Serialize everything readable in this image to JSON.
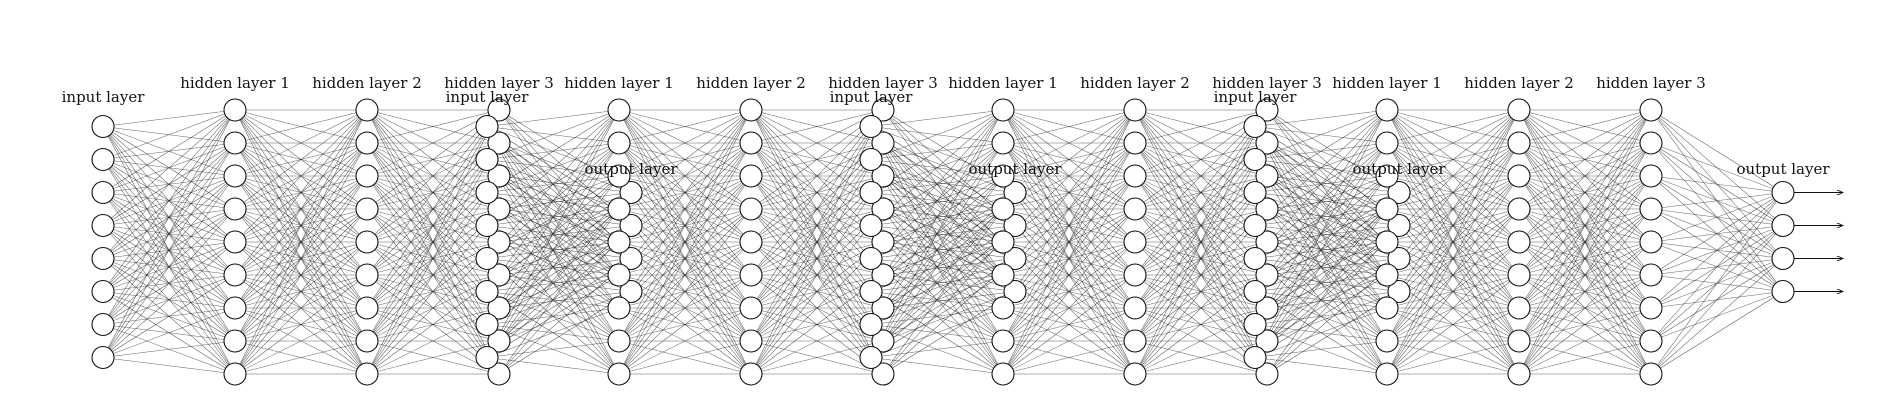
{
  "diagram": {
    "type": "feedforward-neural-network",
    "blocks": [
      {
        "input_label": "input layer",
        "input_nodes": 8,
        "hidden_labels": [
          "hidden layer 1",
          "hidden layer 2",
          "hidden layer 3"
        ],
        "hidden_nodes": 9,
        "output_label": "output layer",
        "output_nodes": 4,
        "output_visible": false
      },
      {
        "input_label": "input layer",
        "input_nodes": 8,
        "hidden_labels": [
          "hidden layer 1",
          "hidden layer 2",
          "hidden layer 3"
        ],
        "hidden_nodes": 9,
        "output_label": "output layer",
        "output_nodes": 4,
        "output_visible": false
      },
      {
        "input_label": "input layer",
        "input_nodes": 8,
        "hidden_labels": [
          "hidden layer 1",
          "hidden layer 2",
          "hidden layer 3"
        ],
        "hidden_nodes": 9,
        "output_label": "output layer",
        "output_nodes": 4,
        "output_visible": false
      },
      {
        "input_label": "input layer",
        "input_nodes": 8,
        "hidden_labels": [
          "hidden layer 1",
          "hidden layer 2",
          "hidden layer 3"
        ],
        "hidden_nodes": 9,
        "output_label": "output layer",
        "output_nodes": 4,
        "output_visible": true
      }
    ]
  }
}
